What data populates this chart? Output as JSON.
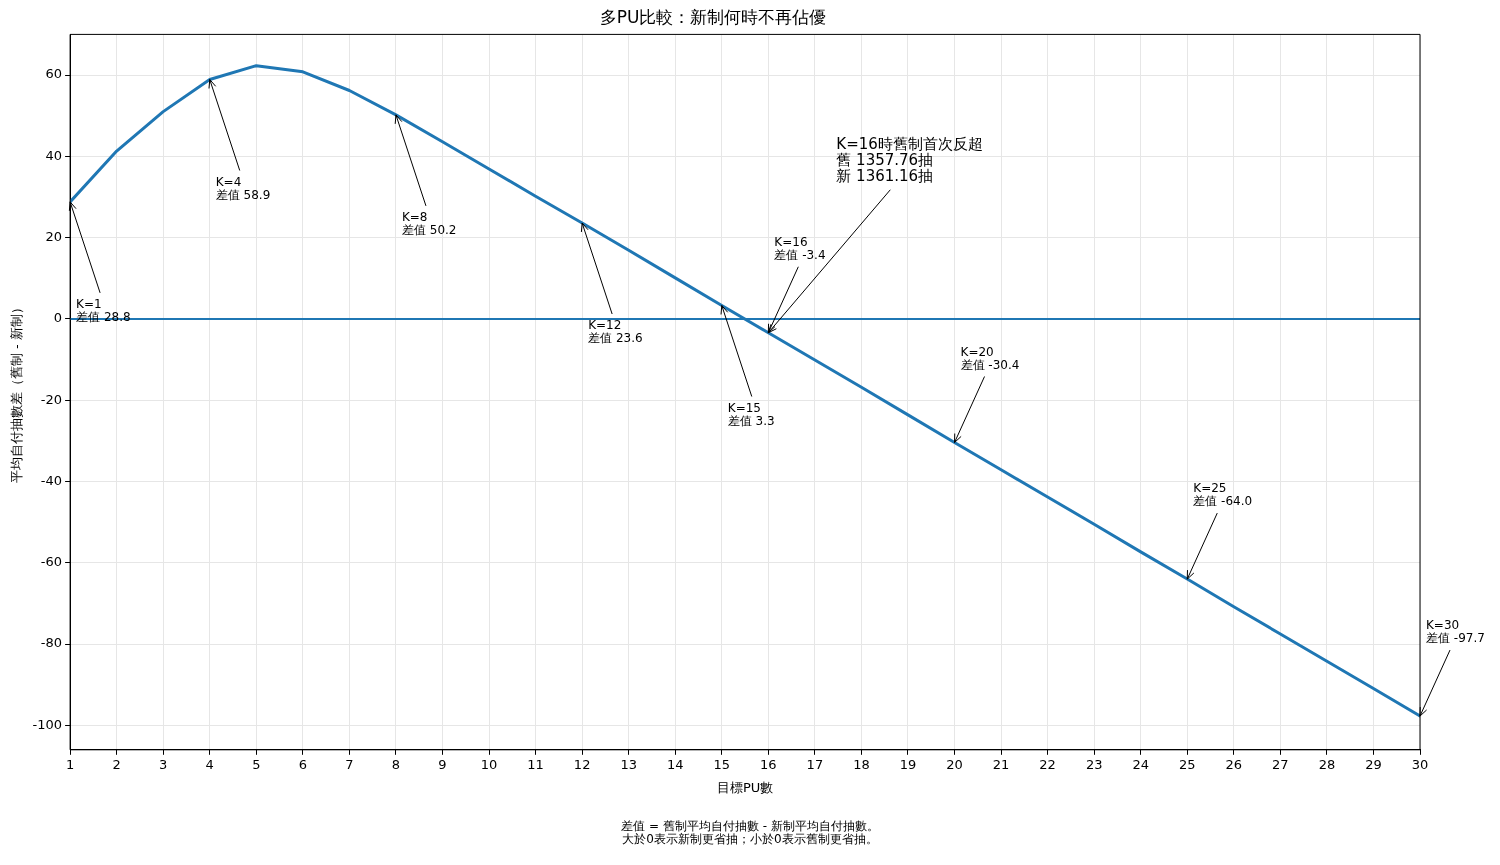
{
  "chart_data": {
    "type": "line",
    "title": "多PU比較：新制何時不再佔優",
    "xlabel": "目標PU數",
    "ylabel": "平均自付抽數差（舊制 - 新制）",
    "x": [
      1,
      2,
      3,
      4,
      5,
      6,
      7,
      8,
      9,
      10,
      11,
      12,
      13,
      14,
      15,
      16,
      17,
      18,
      19,
      20,
      21,
      22,
      23,
      24,
      25,
      26,
      27,
      28,
      29,
      30
    ],
    "series": [
      {
        "color": "#1f77b4",
        "values": [
          28.8,
          41.3,
          51,
          58.9,
          62.3,
          60.8,
          56.2,
          50.2,
          43.6,
          36.9,
          30.2,
          23.6,
          16.9,
          10.1,
          3.3,
          -3.4,
          -10.1,
          -16.8,
          -23.6,
          -30.4,
          -37.1,
          -43.8,
          -50.5,
          -57.3,
          -64.0,
          -70.8,
          -77.5,
          -84.2,
          -90.9,
          -97.7
        ]
      }
    ],
    "xlim": [
      1,
      30
    ],
    "xticks": [
      1,
      2,
      3,
      4,
      5,
      6,
      7,
      8,
      9,
      10,
      11,
      12,
      13,
      14,
      15,
      16,
      17,
      18,
      19,
      20,
      21,
      22,
      23,
      24,
      25,
      26,
      27,
      28,
      29,
      30
    ],
    "ylim": [
      -106,
      70
    ],
    "yticks": [
      -100,
      -80,
      -60,
      -40,
      -20,
      0,
      20,
      40,
      60
    ],
    "grid": true,
    "marker": "none",
    "line_style": "solid",
    "ref_lines": [
      {
        "axis": "y",
        "value": 0,
        "color": "#1f77b4"
      }
    ],
    "annotations": [
      {
        "text": "K=1\n差值 28.8",
        "x": 1,
        "y": 28.8
      },
      {
        "text": "K=4\n差值 58.9",
        "x": 4,
        "y": 58.9
      },
      {
        "text": "K=8\n差值 50.2",
        "x": 8,
        "y": 50.2
      },
      {
        "text": "K=12\n差值 23.6",
        "x": 12,
        "y": 23.6
      },
      {
        "text": "K=15\n差值 3.3",
        "x": 15,
        "y": 3.3
      },
      {
        "text": "K=16\n差值 -3.4",
        "x": 16,
        "y": -3.4
      },
      {
        "text": "K=20\n差值 -30.4",
        "x": 20,
        "y": -30.4
      },
      {
        "text": "K=25\n差值 -64.0",
        "x": 25,
        "y": -64.0
      },
      {
        "text": "K=30\n差值 -97.7",
        "x": 30,
        "y": -97.7
      },
      "K=16時舊制首次反超",
      "舊 1357.76抽",
      {
        "text": "新 1361.16抽",
        "x": 16,
        "y": -3.4
      },
      "差值 = 舊制平均自付抽數 - 新制平均自付抽數。",
      "大於0表示新制更省抽；小於0表示舊制更省抽。"
    ]
  }
}
